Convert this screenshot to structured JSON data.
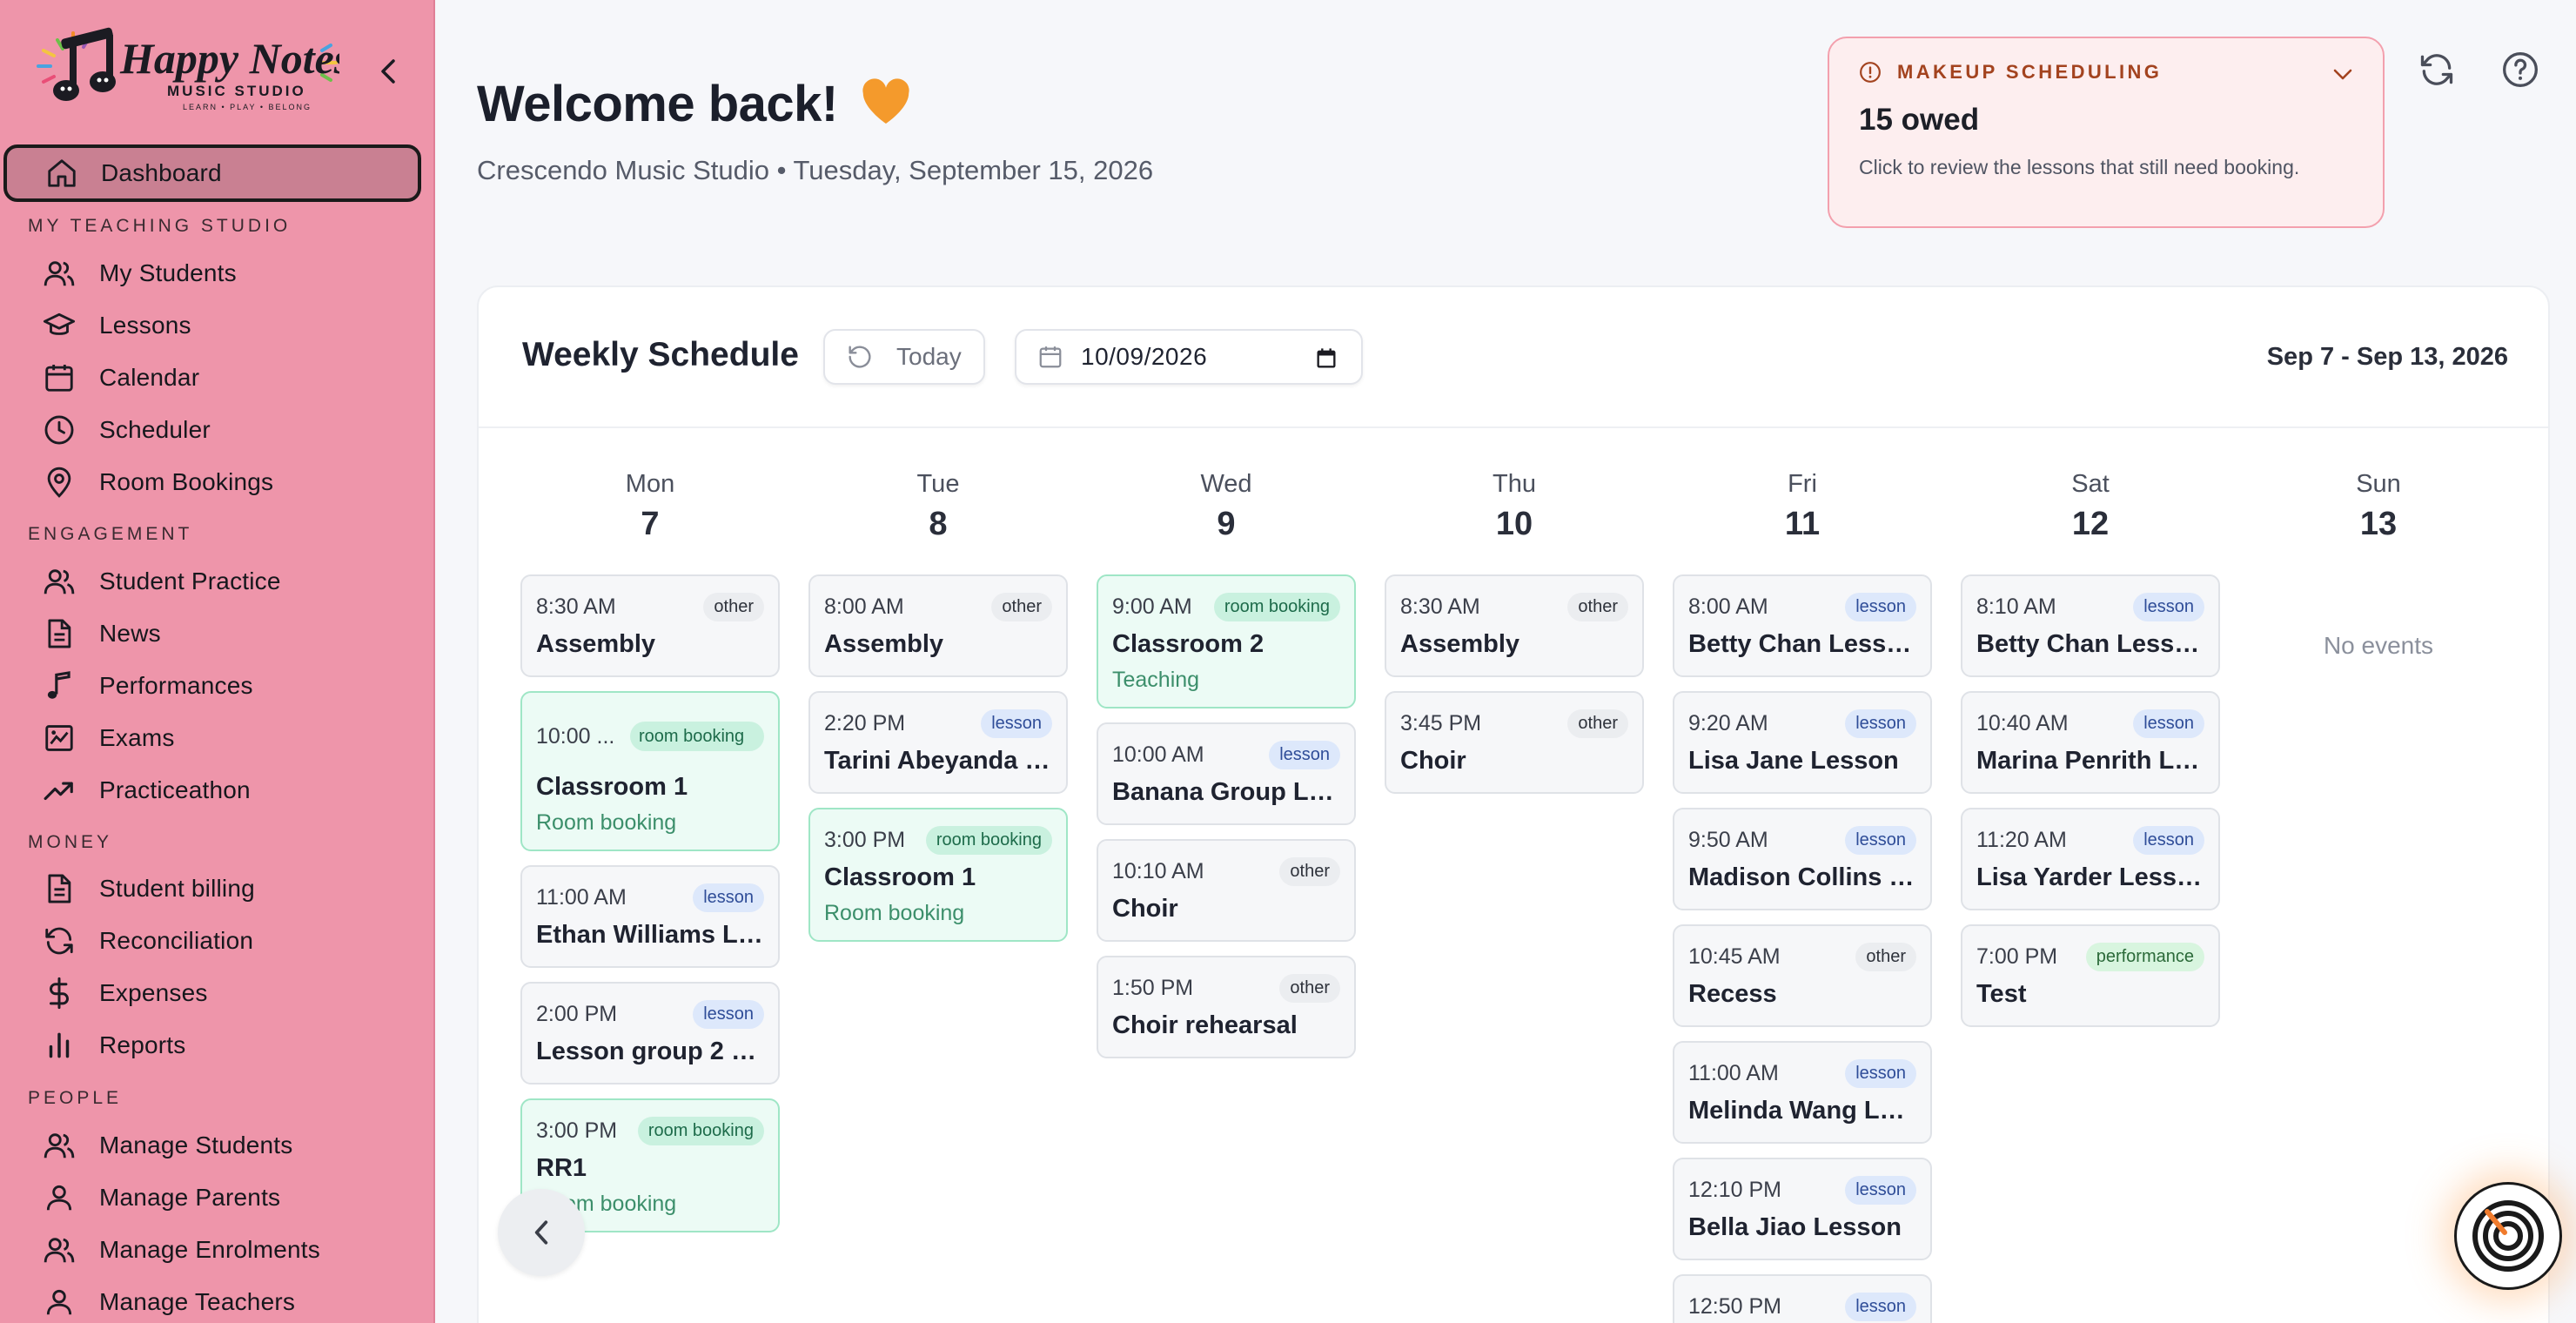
{
  "brand": {
    "logo_text": "Happy Notes",
    "logo_sub": "MUSIC STUDIO",
    "logo_tagline": "LEARN • PLAY • BELONG"
  },
  "sidebar": {
    "dashboard": {
      "label": "Dashboard",
      "icon": "home-icon"
    },
    "sections": [
      {
        "title": "MY TEACHING STUDIO",
        "items": [
          {
            "label": "My Students",
            "icon": "users-icon"
          },
          {
            "label": "Lessons",
            "icon": "graduation-cap-icon"
          },
          {
            "label": "Calendar",
            "icon": "calendar-icon"
          },
          {
            "label": "Scheduler",
            "icon": "clock-icon"
          },
          {
            "label": "Room Bookings",
            "icon": "map-pin-icon"
          }
        ]
      },
      {
        "title": "ENGAGEMENT",
        "items": [
          {
            "label": "Student Practice",
            "icon": "users-icon"
          },
          {
            "label": "News",
            "icon": "document-icon"
          },
          {
            "label": "Performances",
            "icon": "music-note-icon"
          },
          {
            "label": "Exams",
            "icon": "image-chart-icon"
          },
          {
            "label": "Practiceathon",
            "icon": "trending-up-icon"
          }
        ]
      },
      {
        "title": "MONEY",
        "items": [
          {
            "label": "Student billing",
            "icon": "document-icon"
          },
          {
            "label": "Reconciliation",
            "icon": "refresh-icon"
          },
          {
            "label": "Expenses",
            "icon": "dollar-icon"
          },
          {
            "label": "Reports",
            "icon": "bar-chart-icon"
          }
        ]
      },
      {
        "title": "PEOPLE",
        "items": [
          {
            "label": "Manage Students",
            "icon": "users-icon"
          },
          {
            "label": "Manage Parents",
            "icon": "user-icon"
          },
          {
            "label": "Manage Enrolments",
            "icon": "users-icon"
          },
          {
            "label": "Manage Teachers",
            "icon": "user-icon"
          }
        ]
      }
    ]
  },
  "header": {
    "welcome": "Welcome back!",
    "subtitle": "Crescendo Music Studio • Tuesday, September 15, 2026"
  },
  "makeup": {
    "label": "MAKEUP SCHEDULING",
    "owed": "15 owed",
    "description": "Click to review the lessons that still need booking."
  },
  "schedule": {
    "title": "Weekly Schedule",
    "today_label": "Today",
    "date_value": "10/09/2026",
    "range": "Sep 7 - Sep 13, 2026",
    "no_events": "No events",
    "days": [
      {
        "name": "Mon",
        "date": "7",
        "events": [
          {
            "time": "8:30 AM",
            "badge": "other",
            "title": "Assembly"
          },
          {
            "time": "10:00 ...",
            "badge": "room booking",
            "title": "Classroom 1",
            "sub": "Room booking"
          },
          {
            "time": "11:00 AM",
            "badge": "lesson",
            "title": "Ethan Williams Le..."
          },
          {
            "time": "2:00 PM",
            "badge": "lesson",
            "title": "Lesson group 2 L..."
          },
          {
            "time": "3:00 PM",
            "badge": "room booking",
            "title": "RR1",
            "sub": "Room booking"
          }
        ]
      },
      {
        "name": "Tue",
        "date": "8",
        "events": [
          {
            "time": "8:00 AM",
            "badge": "other",
            "title": "Assembly"
          },
          {
            "time": "2:20 PM",
            "badge": "lesson",
            "title": "Tarini Abeyanda L..."
          },
          {
            "time": "3:00 PM",
            "badge": "room booking",
            "title": "Classroom 1",
            "sub": "Room booking"
          }
        ]
      },
      {
        "name": "Wed",
        "date": "9",
        "events": [
          {
            "time": "9:00 AM",
            "badge": "room booking",
            "title": "Classroom 2",
            "sub": "Teaching"
          },
          {
            "time": "10:00 AM",
            "badge": "lesson",
            "title": "Banana Group Le..."
          },
          {
            "time": "10:10 AM",
            "badge": "other",
            "title": "Choir"
          },
          {
            "time": "1:50 PM",
            "badge": "other",
            "title": "Choir rehearsal"
          }
        ]
      },
      {
        "name": "Thu",
        "date": "10",
        "events": [
          {
            "time": "8:30 AM",
            "badge": "other",
            "title": "Assembly"
          },
          {
            "time": "3:45 PM",
            "badge": "other",
            "title": "Choir"
          }
        ]
      },
      {
        "name": "Fri",
        "date": "11",
        "events": [
          {
            "time": "8:00 AM",
            "badge": "lesson",
            "title": "Betty Chan Lesson"
          },
          {
            "time": "9:20 AM",
            "badge": "lesson",
            "title": "Lisa Jane Lesson"
          },
          {
            "time": "9:50 AM",
            "badge": "lesson",
            "title": "Madison Collins L..."
          },
          {
            "time": "10:45 AM",
            "badge": "other",
            "title": "Recess"
          },
          {
            "time": "11:00 AM",
            "badge": "lesson",
            "title": "Melinda Wang Les..."
          },
          {
            "time": "12:10 PM",
            "badge": "lesson",
            "title": "Bella Jiao Lesson"
          },
          {
            "time": "12:50 PM",
            "badge": "lesson",
            "title": ""
          }
        ]
      },
      {
        "name": "Sat",
        "date": "12",
        "events": [
          {
            "time": "8:10 AM",
            "badge": "lesson",
            "title": "Betty Chan Lesson"
          },
          {
            "time": "10:40 AM",
            "badge": "lesson",
            "title": "Marina Penrith Le..."
          },
          {
            "time": "11:20 AM",
            "badge": "lesson",
            "title": "Lisa Yarder Lesson"
          },
          {
            "time": "7:00 PM",
            "badge": "performance",
            "title": "Test"
          }
        ]
      },
      {
        "name": "Sun",
        "date": "13",
        "events": []
      }
    ]
  },
  "colors": {
    "sidebar": "#ee95aa",
    "accent_room": "#9fe6c6",
    "lesson_badge": "#dde8fb",
    "makeup_border": "#f3a0ad"
  }
}
